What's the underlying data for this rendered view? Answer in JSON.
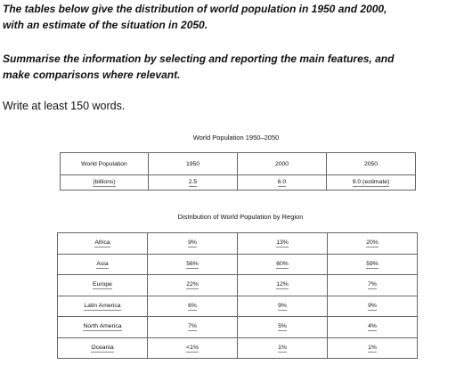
{
  "prompt": {
    "line1": "The tables below give the distribution of world population in 1950 and 2000,",
    "line2": "with an estimate of the situation in 2050.",
    "line3": "Summarise the information by selecting and reporting the main features, and",
    "line4": "make comparisons where relevant."
  },
  "instruction": "Write at least 150 words.",
  "table1": {
    "caption": "World Population 1950–2050",
    "header": [
      "World Population",
      "1950",
      "2000",
      "2050"
    ],
    "row": [
      "(billions)",
      "2.5",
      "6.0",
      "9.0 (estimate)"
    ]
  },
  "table2": {
    "caption": "Distribution of World Population by Region",
    "rows": [
      [
        "Africa",
        "9%",
        "13%",
        "20%"
      ],
      [
        "Asia",
        "56%",
        "60%",
        "59%"
      ],
      [
        "Europe",
        "22%",
        "12%",
        "7%"
      ],
      [
        "Latin America",
        "6%",
        "9%",
        "9%"
      ],
      [
        "North America",
        "7%",
        "5%",
        "4%"
      ],
      [
        "Oceania",
        "<1%",
        "1%",
        "1%"
      ]
    ]
  }
}
